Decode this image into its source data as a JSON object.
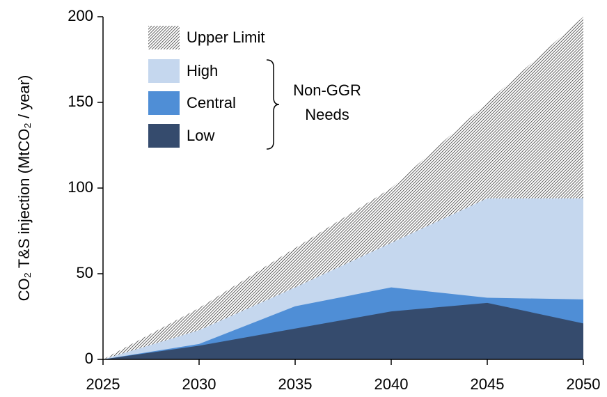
{
  "chart_data": {
    "type": "area",
    "x": [
      2025,
      2030,
      2035,
      2040,
      2045,
      2050
    ],
    "xlim": [
      2025,
      2050
    ],
    "xticks": [
      2025,
      2030,
      2035,
      2040,
      2045,
      2050
    ],
    "ylim": [
      0,
      200
    ],
    "yticks": [
      0,
      50,
      100,
      150,
      200
    ],
    "ylabel": "CO₂ T&S injection (MtCO₂ / year)",
    "series": [
      {
        "name": "Upper Limit",
        "color": "#000000",
        "hatch": true,
        "values": [
          0,
          30,
          65,
          100,
          150,
          200
        ]
      },
      {
        "name": "High",
        "color": "#c5d7ee",
        "values": [
          0,
          17,
          42,
          68,
          94,
          94
        ]
      },
      {
        "name": "Central",
        "color": "#4f8ed6",
        "values": [
          0,
          9,
          31,
          42,
          36,
          35
        ]
      },
      {
        "name": "Low",
        "color": "#354b6d",
        "values": [
          0,
          8,
          18,
          28,
          33,
          21
        ]
      }
    ],
    "annotation": [
      "Non-GGR",
      "Needs"
    ],
    "grid": false
  }
}
